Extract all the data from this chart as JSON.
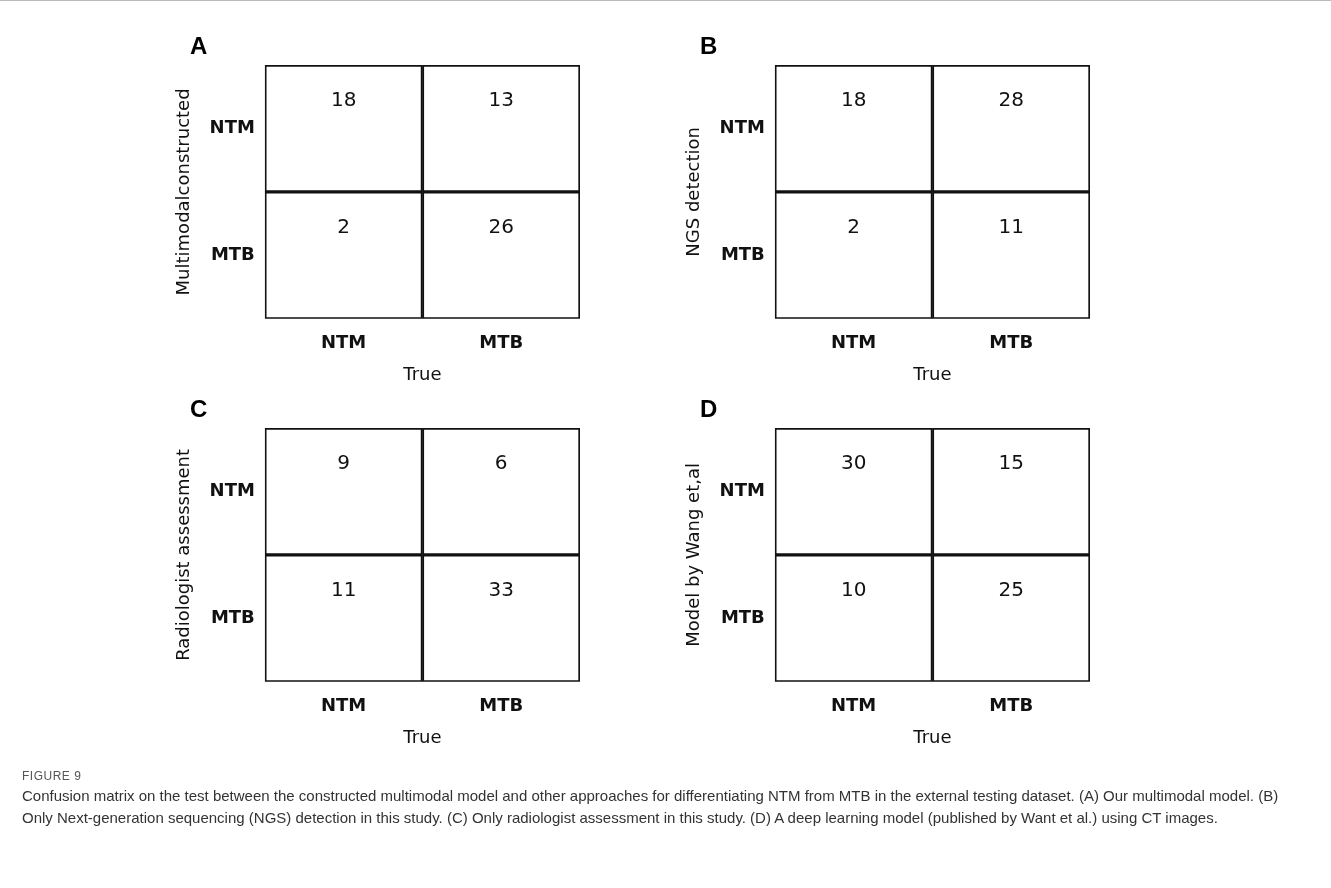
{
  "chart_data": [
    {
      "type": "heatmap",
      "title": "A",
      "ylabel": "Multimodalconstructed",
      "xlabel": "True",
      "categories": [
        "NTM",
        "MTB"
      ],
      "y_categories": [
        "NTM",
        "MTB"
      ],
      "cells": [
        [
          18,
          13
        ],
        [
          2,
          26
        ]
      ],
      "data_labels": true,
      "annotations": [
        "FIGURE 9",
        "Confusion matrix on the test between the constructed multimodal model and other approaches for differentiating NTM from MTB in the external testing dataset. (A) Our multimodal model. (B) Only Next-generation sequencing (NGS) detection in this study. (C) Only radiologist assessment in this study. (D) A deep learning model (published by Want et al.) using CT images."
      ]
    },
    {
      "type": "heatmap",
      "title": "B",
      "ylabel": "NGS detection",
      "xlabel": "True",
      "categories": [
        "NTM",
        "MTB"
      ],
      "y_categories": [
        "NTM",
        "MTB"
      ],
      "cells": [
        [
          18,
          28
        ],
        [
          2,
          11
        ]
      ],
      "data_labels": true
    },
    {
      "type": "heatmap",
      "title": "C",
      "ylabel": "Radiologist assessment",
      "xlabel": "True",
      "categories": [
        "NTM",
        "MTB"
      ],
      "y_categories": [
        "NTM",
        "MTB"
      ],
      "cells": [
        [
          9,
          6
        ],
        [
          11,
          33
        ]
      ],
      "data_labels": true
    },
    {
      "type": "heatmap",
      "title": "D",
      "ylabel": "Model by Wang et,al",
      "xlabel": "True",
      "categories": [
        "NTM",
        "MTB"
      ],
      "y_categories": [
        "NTM",
        "MTB"
      ],
      "cells": [
        [
          30,
          15
        ],
        [
          10,
          25
        ]
      ],
      "data_labels": true
    }
  ]
}
